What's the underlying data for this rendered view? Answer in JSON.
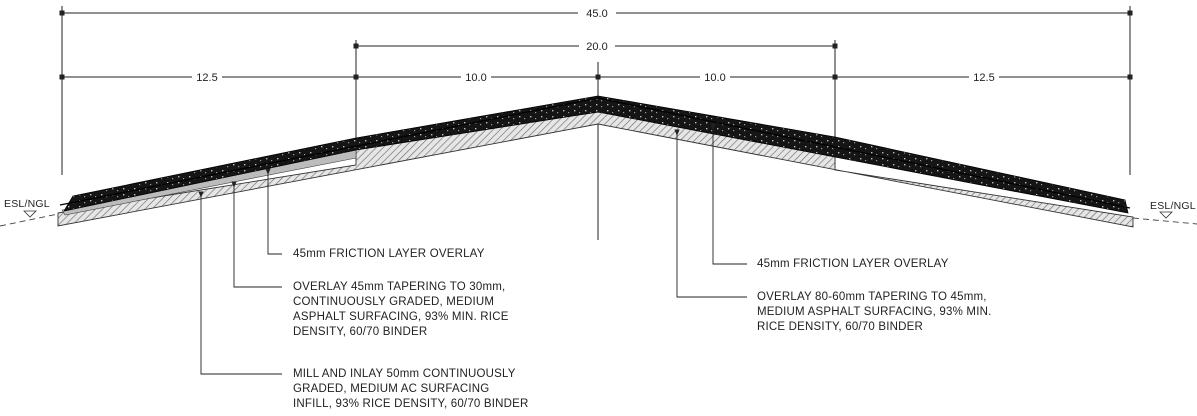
{
  "dimensions": {
    "overall": "45.0",
    "centre": "20.0",
    "left_outer": "12.5",
    "left_inner": "10.0",
    "right_inner": "10.0",
    "right_outer": "12.5"
  },
  "ground_labels": {
    "left": "ESL/NGL",
    "right": "ESL/NGL"
  },
  "notes": {
    "left_friction": "45mm FRICTION LAYER OVERLAY",
    "left_overlay": "OVERLAY 45mm TAPERING TO 30mm,\nCONTINUOUSLY GRADED, MEDIUM\nASPHALT SURFACING, 93% MIN. RICE\nDENSITY, 60/70 BINDER",
    "left_mill": "MILL AND INLAY 50mm CONTINUOUSLY\nGRADED, MEDIUM AC SURFACING\nINFILL, 93% RICE DENSITY, 60/70 BINDER",
    "right_friction": "45mm FRICTION LAYER OVERLAY",
    "right_overlay": "OVERLAY 80-60mm TAPERING TO 45mm,\nMEDIUM ASPHALT SURFACING, 93% MIN.\nRICE DENSITY, 60/70 BINDER"
  },
  "colors": {
    "line": "#222222",
    "friction_layer": "#111111",
    "hatch": "#777777"
  }
}
